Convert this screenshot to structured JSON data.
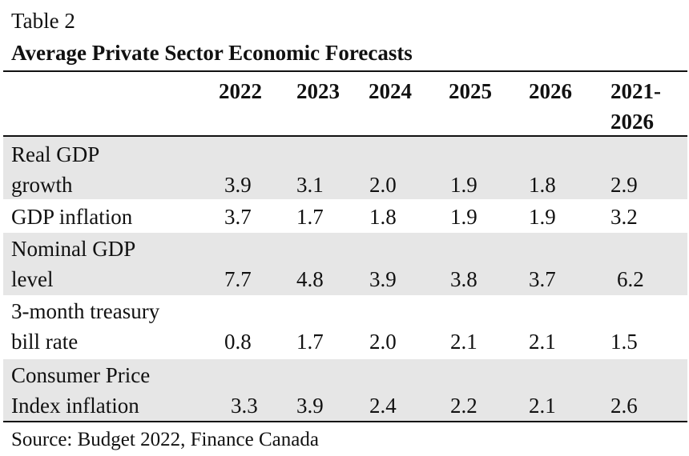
{
  "table": {
    "label": "Table 2",
    "title": "Average Private Sector Economic Forecasts",
    "columns": [
      "2022",
      "2023",
      "2024",
      "2025",
      "2026",
      "2021-",
      "2026"
    ],
    "rows": [
      {
        "label_line1": "Real GDP",
        "label_line2": "growth",
        "values": [
          "3.9",
          "3.1",
          "2.0",
          "1.9",
          "1.8",
          "2.9"
        ]
      },
      {
        "label_line1": "GDP inflation",
        "values": [
          "3.7",
          "1.7",
          "1.8",
          "1.9",
          "1.9",
          "3.2"
        ]
      },
      {
        "label_line1": "Nominal GDP",
        "label_line2": "level",
        "values": [
          "7.7",
          "4.8",
          "3.9",
          "3.8",
          "3.7",
          "6.2"
        ]
      },
      {
        "label_line1": "3-month treasury",
        "label_line2": "bill rate",
        "values": [
          "0.8",
          "1.7",
          "2.0",
          "2.1",
          "2.1",
          "1.5"
        ]
      },
      {
        "label_line1": "Consumer Price",
        "label_line2": "Index inflation",
        "values": [
          "3.3",
          "3.9",
          "2.4",
          "2.2",
          "2.1",
          "2.6"
        ]
      }
    ],
    "source": "Source: Budget 2022, Finance Canada"
  }
}
